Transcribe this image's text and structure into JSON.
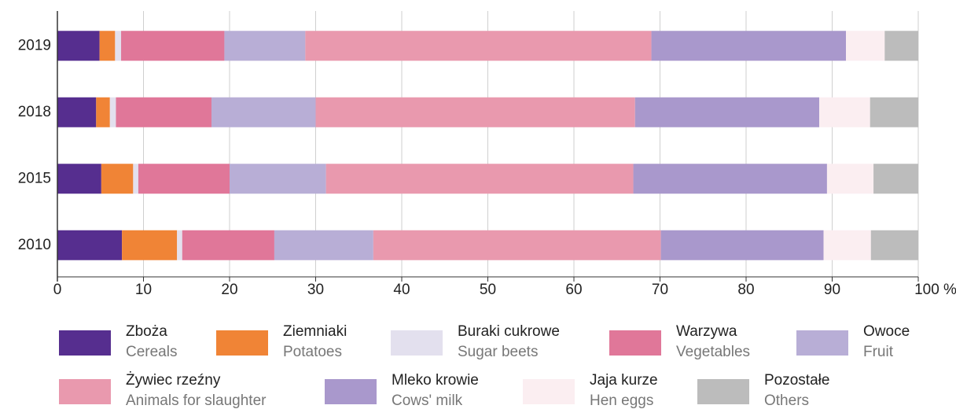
{
  "chart_data": {
    "type": "stacked_barh",
    "categories": [
      "2019",
      "2018",
      "2015",
      "2010"
    ],
    "series": [
      {
        "name": "Zboża",
        "name_en": "Cereals",
        "color": "#562e8f",
        "values": [
          4.9,
          4.5,
          5.1,
          7.5
        ]
      },
      {
        "name": "Ziemniaki",
        "name_en": "Potatoes",
        "color": "#f08436",
        "values": [
          1.8,
          1.6,
          3.7,
          6.4
        ]
      },
      {
        "name": "Buraki cukrowe",
        "name_en": "Sugar beets",
        "color": "#e3e0ee",
        "values": [
          0.7,
          0.7,
          0.6,
          0.6
        ]
      },
      {
        "name": "Warzywa",
        "name_en": "Vegetables",
        "color": "#e07799",
        "values": [
          12.0,
          11.1,
          10.6,
          10.7
        ]
      },
      {
        "name": "Owoce",
        "name_en": "Fruit",
        "color": "#b8aed6",
        "values": [
          9.4,
          12.1,
          11.2,
          11.5
        ]
      },
      {
        "name": "Żywiec rzeźny",
        "name_en": "Animals for slaughter",
        "color": "#e999ae",
        "values": [
          40.2,
          37.1,
          35.7,
          33.4
        ]
      },
      {
        "name": "Mleko krowie",
        "name_en": "Cows' milk",
        "color": "#a998cc",
        "values": [
          22.6,
          21.4,
          22.5,
          18.9
        ]
      },
      {
        "name": "Jaja kurze",
        "name_en": "Hen eggs",
        "color": "#fbeef1",
        "values": [
          4.5,
          5.9,
          5.4,
          5.5
        ]
      },
      {
        "name": "Pozostałe",
        "name_en": "Others",
        "color": "#bcbcbc",
        "values": [
          3.9,
          5.6,
          5.2,
          5.5
        ]
      }
    ],
    "xlim": [
      0,
      100
    ],
    "xticks": [
      0,
      10,
      20,
      30,
      40,
      50,
      60,
      70,
      80,
      90,
      {
        "value": 100,
        "label": "100 %"
      }
    ],
    "grid": true
  }
}
